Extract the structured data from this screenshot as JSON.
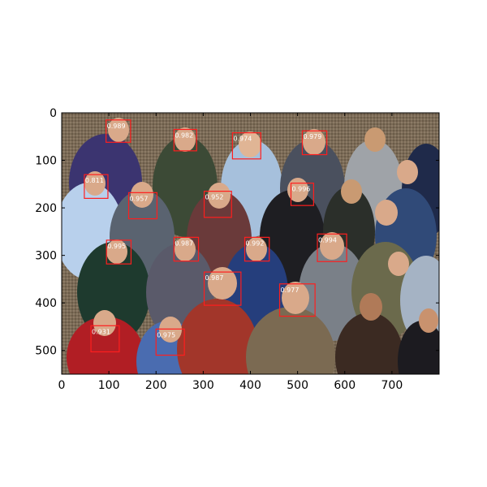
{
  "image": {
    "width": 800,
    "height": 550,
    "description_colors": {
      "background": "#7a6a56",
      "box": "#ff1e1e",
      "label_text": "#ffffff"
    }
  },
  "axes": {
    "x_ticks": [
      0,
      100,
      200,
      300,
      400,
      500,
      600,
      700
    ],
    "y_ticks": [
      0,
      100,
      200,
      300,
      400,
      500
    ]
  },
  "detections": [
    {
      "x": 94,
      "y": 15,
      "w": 52,
      "h": 47,
      "label": "0.989"
    },
    {
      "x": 238,
      "y": 35,
      "w": 48,
      "h": 45,
      "label": "0.982"
    },
    {
      "x": 362,
      "y": 42,
      "w": 60,
      "h": 55,
      "label": "0.974"
    },
    {
      "x": 510,
      "y": 38,
      "w": 52,
      "h": 50,
      "label": "0.979"
    },
    {
      "x": 48,
      "y": 130,
      "w": 50,
      "h": 50,
      "label": "0.811"
    },
    {
      "x": 142,
      "y": 168,
      "w": 60,
      "h": 55,
      "label": "0.957"
    },
    {
      "x": 302,
      "y": 165,
      "w": 58,
      "h": 55,
      "label": "0.952"
    },
    {
      "x": 486,
      "y": 148,
      "w": 48,
      "h": 47,
      "label": "0.996"
    },
    {
      "x": 95,
      "y": 268,
      "w": 52,
      "h": 50,
      "label": "0.995"
    },
    {
      "x": 238,
      "y": 262,
      "w": 52,
      "h": 50,
      "label": "0.987"
    },
    {
      "x": 388,
      "y": 262,
      "w": 52,
      "h": 50,
      "label": "0.992"
    },
    {
      "x": 542,
      "y": 255,
      "w": 62,
      "h": 58,
      "label": "0.994"
    },
    {
      "x": 302,
      "y": 335,
      "w": 78,
      "h": 70,
      "label": "0.987"
    },
    {
      "x": 462,
      "y": 360,
      "w": 75,
      "h": 68,
      "label": "0.977"
    },
    {
      "x": 62,
      "y": 448,
      "w": 60,
      "h": 55,
      "label": "0.931"
    },
    {
      "x": 200,
      "y": 455,
      "w": 60,
      "h": 55,
      "label": "0.975"
    }
  ]
}
